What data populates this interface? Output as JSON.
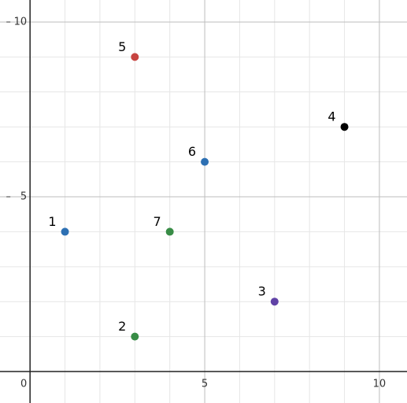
{
  "chart_data": {
    "type": "scatter",
    "x": [
      1,
      3,
      7,
      9,
      3,
      5,
      4
    ],
    "values": [
      4,
      1,
      2,
      7,
      9,
      6,
      4
    ],
    "labels": [
      "1",
      "2",
      "3",
      "4",
      "5",
      "6",
      "7"
    ],
    "colors": [
      "#2d70b3",
      "#388c46",
      "#6042a6",
      "#000000",
      "#c74440",
      "#2d70b3",
      "#388c46"
    ],
    "xlim": [
      -0.86,
      10.79
    ],
    "ylim": [
      -0.9,
      10.63
    ],
    "xticks": [
      0,
      5,
      10
    ],
    "yticks": [
      5,
      10
    ],
    "minor_xticks": [
      1,
      2,
      3,
      4,
      6,
      7,
      8,
      9
    ],
    "minor_yticks": [
      1,
      2,
      3,
      4,
      6,
      7,
      8,
      9
    ],
    "grid": true
  }
}
